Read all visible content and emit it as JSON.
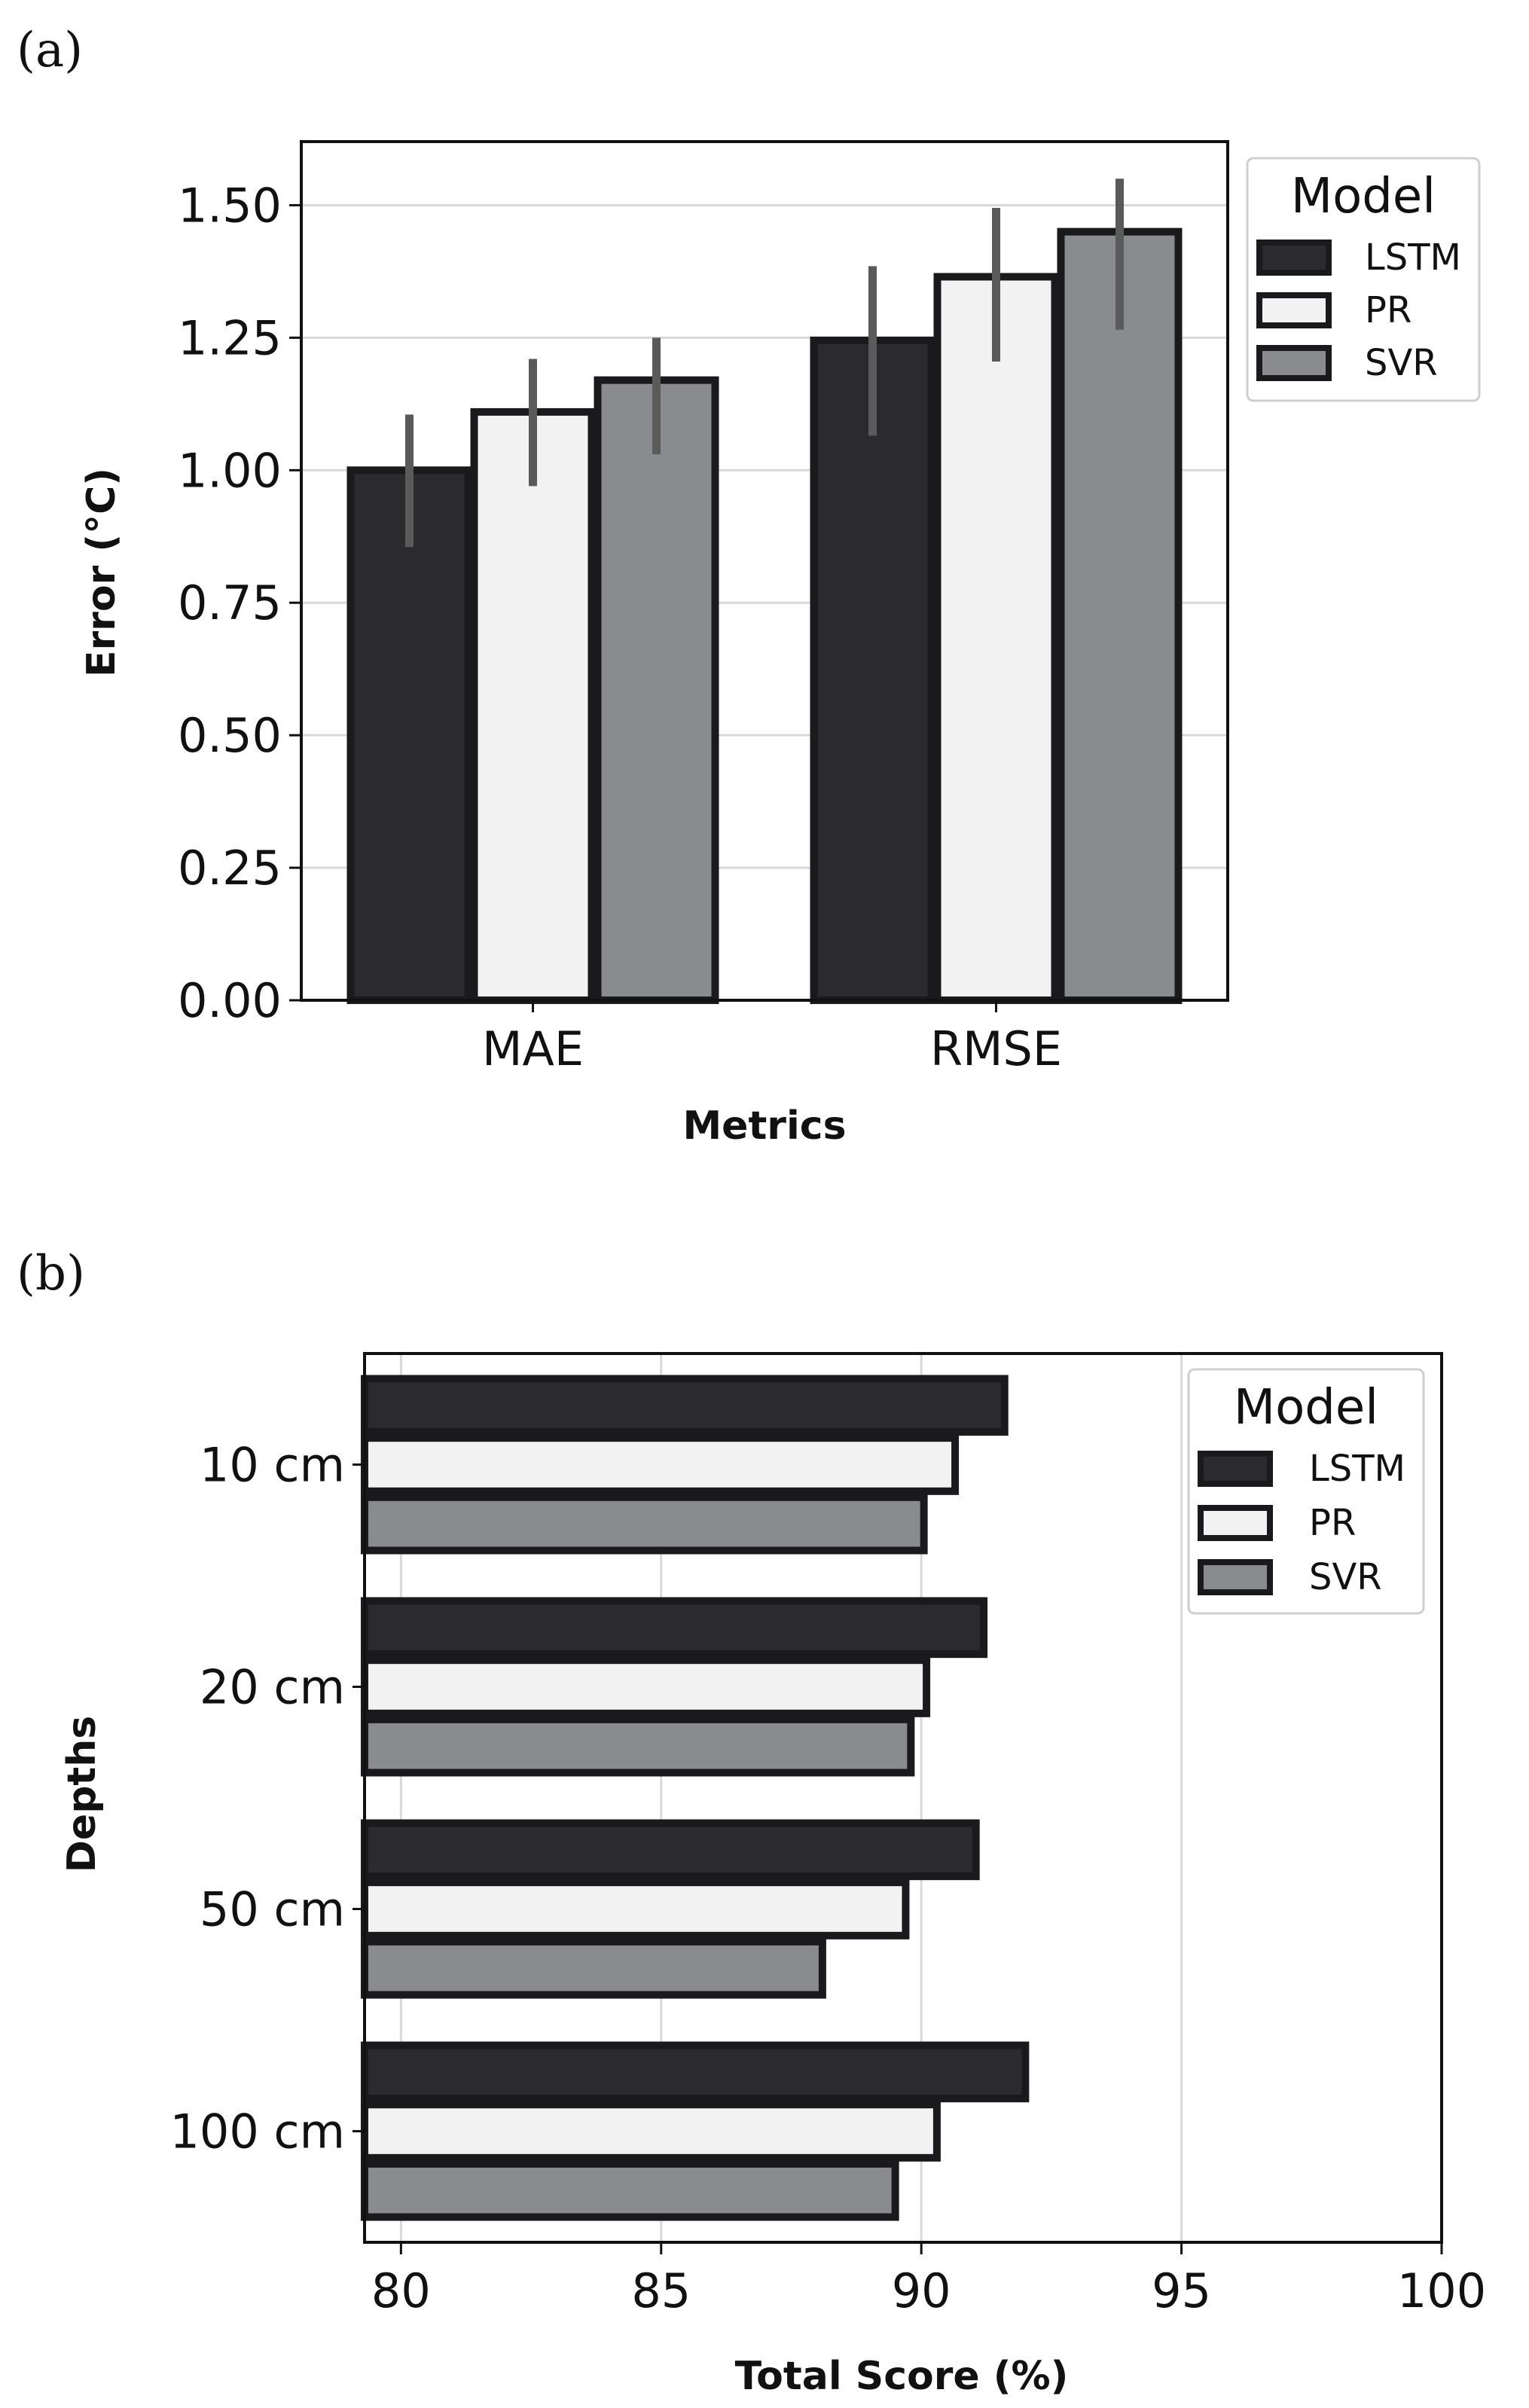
{
  "colors": {
    "LSTM": "#2b2b2d",
    "PR": "#f2f2f2",
    "SVR": "#8a8b8f",
    "edge": "#1a1a1c",
    "grid": "#d9d9d9",
    "errbar": "#5a5a5a"
  },
  "chart_data": [
    {
      "panel": "(a)",
      "type": "bar",
      "orientation": "vertical",
      "xlabel": "Metrics",
      "ylabel": "Error (°C)",
      "categories": [
        "MAE",
        "RMSE"
      ],
      "ylim": [
        0,
        1.62
      ],
      "yticks": [
        0.0,
        0.25,
        0.5,
        0.75,
        1.0,
        1.25,
        1.5
      ],
      "ytick_labels": [
        "0.00",
        "0.25",
        "0.50",
        "0.75",
        "1.00",
        "1.25",
        "1.50"
      ],
      "grid": "horizontal",
      "legend": {
        "title": "Model",
        "position": "top-right-outside",
        "entries": [
          "LSTM",
          "PR",
          "SVR"
        ]
      },
      "series": [
        {
          "name": "LSTM",
          "values": [
            1.0,
            1.245
          ],
          "err_low": [
            0.855,
            1.065
          ],
          "err_high": [
            1.105,
            1.385
          ]
        },
        {
          "name": "PR",
          "values": [
            1.11,
            1.365
          ],
          "err_low": [
            0.97,
            1.205
          ],
          "err_high": [
            1.21,
            1.495
          ]
        },
        {
          "name": "SVR",
          "values": [
            1.17,
            1.45
          ],
          "err_low": [
            1.03,
            1.265
          ],
          "err_high": [
            1.25,
            1.55
          ]
        }
      ]
    },
    {
      "panel": "(b)",
      "type": "bar",
      "orientation": "horizontal",
      "xlabel": "Total Score (%)",
      "ylabel": "Depths",
      "categories": [
        "10 cm",
        "20 cm",
        "50 cm",
        "100 cm"
      ],
      "xlim": [
        79.3,
        100
      ],
      "xticks": [
        80,
        85,
        90,
        95,
        100
      ],
      "xtick_labels": [
        "80",
        "85",
        "90",
        "95",
        "100"
      ],
      "grid": "vertical",
      "legend": {
        "title": "Model",
        "position": "top-right",
        "entries": [
          "LSTM",
          "PR",
          "SVR"
        ]
      },
      "series": [
        {
          "name": "LSTM",
          "values": [
            91.6,
            91.2,
            91.05,
            92.0
          ]
        },
        {
          "name": "PR",
          "values": [
            90.65,
            90.1,
            89.7,
            90.3
          ]
        },
        {
          "name": "SVR",
          "values": [
            90.05,
            89.8,
            88.1,
            89.5
          ]
        }
      ]
    }
  ]
}
